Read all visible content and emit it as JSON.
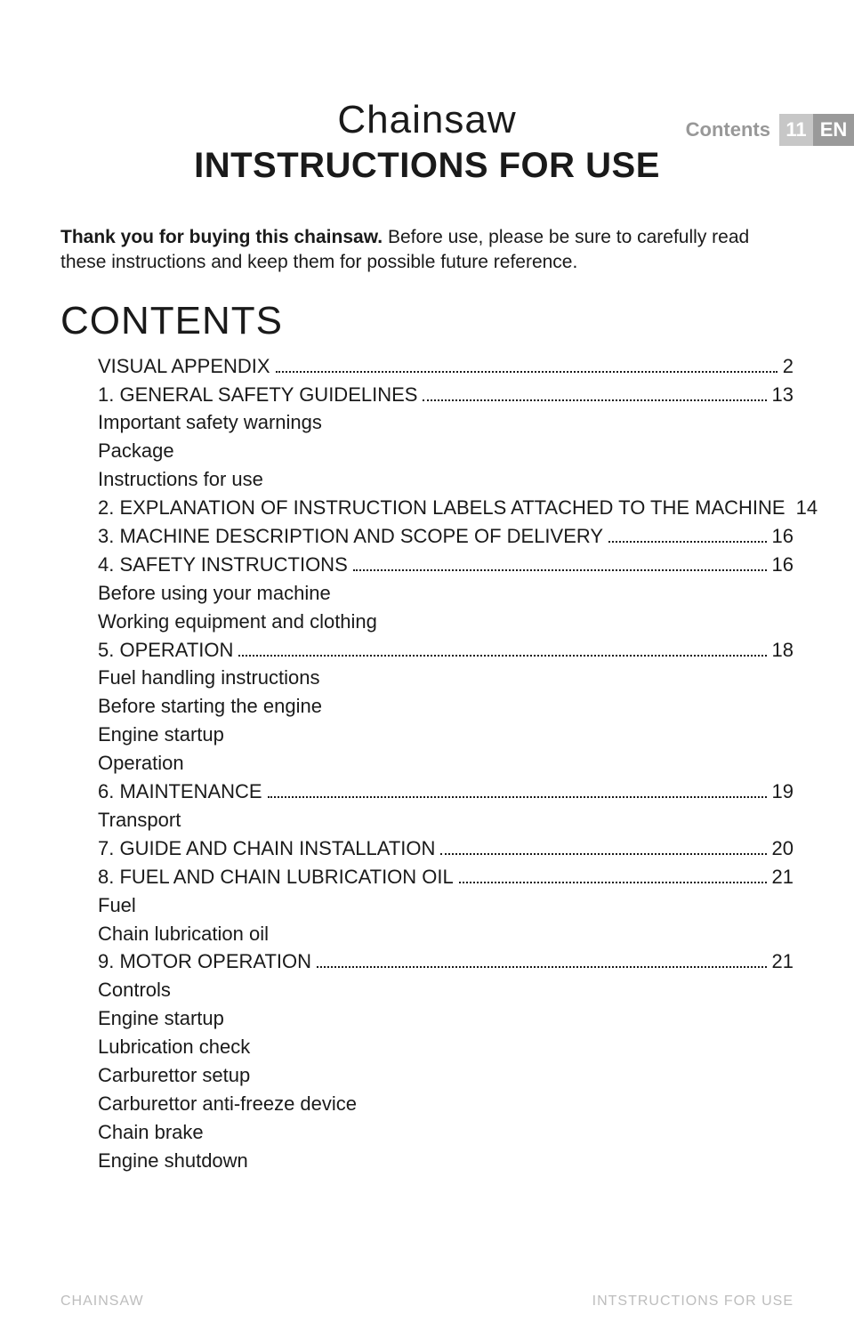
{
  "header": {
    "section": "Contents",
    "page_number": "11",
    "language": "EN"
  },
  "title": {
    "line1": "Chainsaw",
    "line2": "INTSTRUCTIONS FOR USE"
  },
  "intro": {
    "bold": "Thank you for buying this chainsaw.",
    "rest": " Before use, please be sure to carefully read these instructions and keep them for possible future reference."
  },
  "contents_heading": "CONTENTS",
  "toc": [
    {
      "label": "VISUAL APPENDIX",
      "page": "2",
      "subs": []
    },
    {
      "label": "1. GENERAL SAFETY GUIDELINES",
      "page": "13",
      "subs": [
        "Important safety warnings",
        "Package",
        "Instructions for use"
      ]
    },
    {
      "label": "2. EXPLANATION OF INSTRUCTION LABELS ATTACHED TO THE MACHINE",
      "page": "14",
      "subs": []
    },
    {
      "label": "3. MACHINE DESCRIPTION AND SCOPE OF DELIVERY",
      "page": "16",
      "subs": []
    },
    {
      "label": "4. SAFETY INSTRUCTIONS",
      "page": "16",
      "subs": [
        "Before using your machine",
        "Working equipment and clothing"
      ]
    },
    {
      "label": "5. OPERATION",
      "page": "18",
      "subs": [
        "Fuel handling instructions",
        "Before starting the engine",
        "Engine startup",
        "Operation"
      ]
    },
    {
      "label": "6. MAINTENANCE",
      "page": "19",
      "subs": [
        "Transport"
      ]
    },
    {
      "label": "7. GUIDE AND CHAIN INSTALLATION",
      "page": "20",
      "subs": []
    },
    {
      "label": "8. FUEL AND CHAIN LUBRICATION OIL",
      "page": "21",
      "subs": [
        "Fuel",
        "Chain lubrication oil"
      ]
    },
    {
      "label": "9. MOTOR OPERATION",
      "page": "21",
      "subs": [
        "Controls",
        "Engine startup",
        "Lubrication check",
        "Carburettor setup",
        "Carburettor anti-freeze device",
        "Chain brake",
        "Engine shutdown"
      ]
    }
  ],
  "footer": {
    "left": "CHAINSAW",
    "right": "INTSTRUCTIONS FOR USE"
  },
  "style": {
    "page_bg": "#ffffff",
    "text_color": "#1a1a1a",
    "muted_color": "#989898",
    "footer_color": "#bdbdbd",
    "pagebox_bg": "#c7c7c7",
    "langbox_bg": "#9a9a9a",
    "title_fontsize": 44,
    "subtitle_fontsize": 40,
    "body_fontsize": 22
  }
}
